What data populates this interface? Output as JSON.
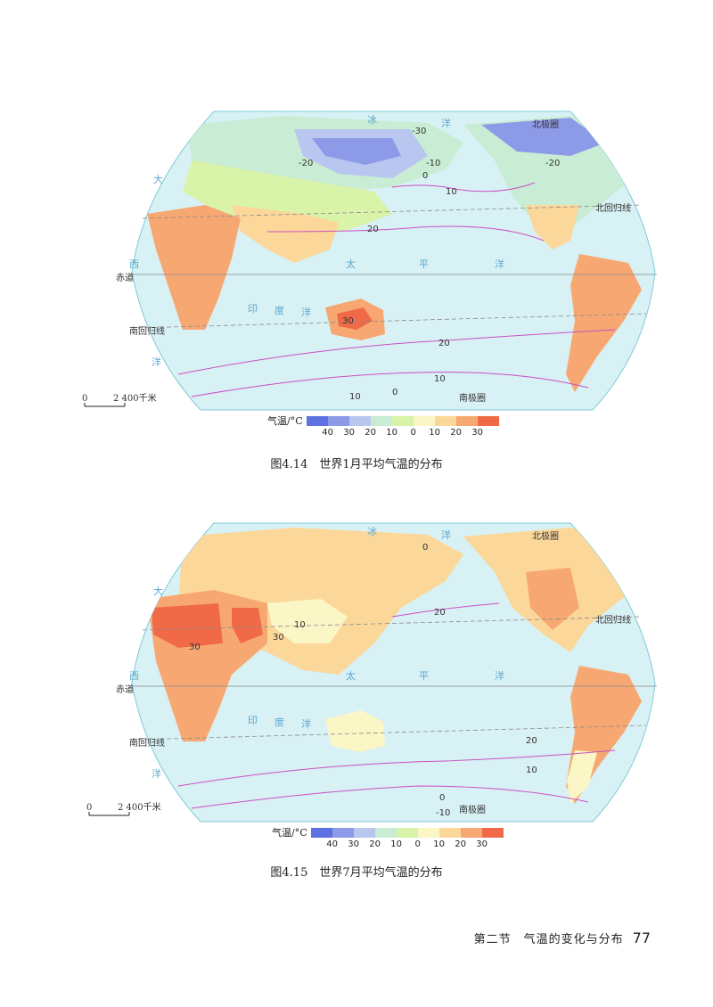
{
  "scale_bar": {
    "start": "0",
    "end": "2 400千米"
  },
  "labels": {
    "equator": "赤道",
    "tropic_north": "北回归线",
    "tropic_south": "南回归线",
    "arctic_circle": "北极圈",
    "antarctic_circle": "南极圈"
  },
  "oceans": {
    "arctic": [
      "冰",
      "洋"
    ],
    "pacific": [
      "太",
      "平",
      "洋"
    ],
    "atlantic": [
      "大",
      "西",
      "洋"
    ],
    "indian": [
      "印",
      "度",
      "洋"
    ]
  },
  "legend": {
    "title": "气温/°C",
    "colors": [
      "#5d72e0",
      "#8d9ae8",
      "#b8c6f0",
      "#c8ecd4",
      "#d9f3a8",
      "#fbf6c6",
      "#fbd89a",
      "#f7a872",
      "#f06a48"
    ],
    "ticks": [
      "40",
      "30",
      "20",
      "10",
      "0",
      "10",
      "20",
      "30"
    ]
  },
  "map1": {
    "caption": "图4.14　世界1月平均气温的分布",
    "isotherms": {
      "t30": "30",
      "n30": "-30",
      "n20a": "-20",
      "n20b": "-20",
      "n10": "-10",
      "z0": "0",
      "p10": "10",
      "p20a": "20",
      "p20b": "20",
      "p10s": "10",
      "p10ss": "10",
      "z0s": "0"
    }
  },
  "map2": {
    "caption": "图4.15　世界7月平均气温的分布",
    "isotherms": {
      "z0n": "0",
      "p20n": "20",
      "p10c": "10",
      "p30a": "30",
      "p30b": "30",
      "p20s": "20",
      "p10s": "10",
      "z0s": "0",
      "n10s": "-10"
    }
  },
  "footer": {
    "section": "第二节　气温的变化与分布",
    "page": "77"
  }
}
